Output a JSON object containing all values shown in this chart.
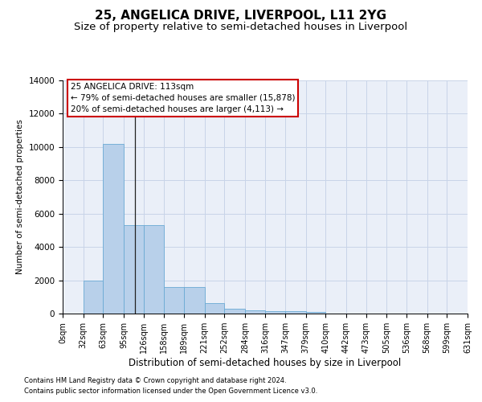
{
  "title": "25, ANGELICA DRIVE, LIVERPOOL, L11 2YG",
  "subtitle": "Size of property relative to semi-detached houses in Liverpool",
  "xlabel": "Distribution of semi-detached houses by size in Liverpool",
  "ylabel": "Number of semi-detached properties",
  "footnote1": "Contains HM Land Registry data © Crown copyright and database right 2024.",
  "footnote2": "Contains public sector information licensed under the Open Government Licence v3.0.",
  "annotation_title": "25 ANGELICA DRIVE: 113sqm",
  "annotation_line1": "← 79% of semi-detached houses are smaller (15,878)",
  "annotation_line2": "20% of semi-detached houses are larger (4,113) →",
  "property_size": 113,
  "bar_edges": [
    0,
    32,
    63,
    95,
    126,
    158,
    189,
    221,
    252,
    284,
    316,
    347,
    379,
    410,
    442,
    473,
    505,
    536,
    568,
    599,
    631
  ],
  "bar_values": [
    0,
    2000,
    10200,
    5300,
    5300,
    1600,
    1600,
    650,
    290,
    190,
    165,
    140,
    110,
    0,
    0,
    0,
    0,
    0,
    0,
    0
  ],
  "bar_color": "#b8d0ea",
  "bar_edge_color": "#6aaad4",
  "grid_color": "#c8d4e8",
  "background_color": "#eaeff8",
  "ylim": [
    0,
    14000
  ],
  "title_fontsize": 11,
  "subtitle_fontsize": 9.5,
  "xlabel_fontsize": 8.5,
  "ylabel_fontsize": 7.5,
  "tick_fontsize": 7,
  "annotation_box_color": "#cc0000",
  "annotation_fontsize": 7.5,
  "property_line_color": "#222222",
  "footnote_fontsize": 6
}
